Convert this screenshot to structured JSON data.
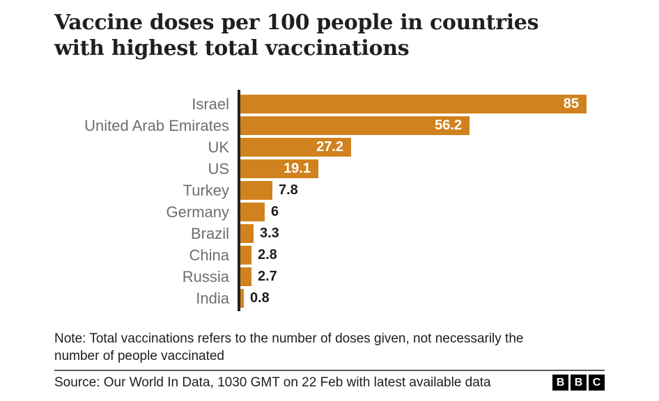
{
  "header": {
    "title_line1": "Vaccine doses per 100 people in countries",
    "title_line2": "with highest total vaccinations"
  },
  "chart_data": {
    "type": "bar",
    "orientation": "horizontal",
    "title": "Vaccine doses per 100 people in countries with highest total vaccinations",
    "categories": [
      "Israel",
      "United Arab Emirates",
      "UK",
      "US",
      "Turkey",
      "Germany",
      "Brazil",
      "China",
      "Russia",
      "India"
    ],
    "values": [
      85,
      56.2,
      27.2,
      19.1,
      7.8,
      6,
      3.3,
      2.8,
      2.7,
      0.8
    ],
    "value_labels": [
      "85",
      "56.2",
      "27.2",
      "19.1",
      "7.8",
      "6",
      "3.3",
      "2.8",
      "2.7",
      "0.8"
    ],
    "xlabel": "",
    "ylabel": "",
    "xlim": [
      0,
      85
    ],
    "grid": false,
    "legend": "none",
    "bar_color": "#d0821e",
    "category_label_color": "#6e6e73",
    "value_label_inside_color": "#ffffff",
    "value_label_outside_color": "#1d1d1b"
  },
  "note": {
    "text": "Note: Total vaccinations refers to the number of doses given, not necessarily the number of people vaccinated"
  },
  "source": {
    "text": "Source: Our World In Data, 1030 GMT on 22 Feb with latest available data"
  },
  "logo": {
    "letters": [
      "B",
      "B",
      "C"
    ]
  }
}
